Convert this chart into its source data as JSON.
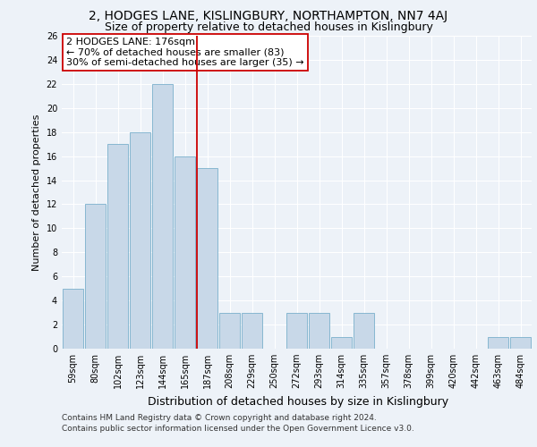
{
  "title1": "2, HODGES LANE, KISLINGBURY, NORTHAMPTON, NN7 4AJ",
  "title2": "Size of property relative to detached houses in Kislingbury",
  "xlabel": "Distribution of detached houses by size in Kislingbury",
  "ylabel": "Number of detached properties",
  "categories": [
    "59sqm",
    "80sqm",
    "102sqm",
    "123sqm",
    "144sqm",
    "165sqm",
    "187sqm",
    "208sqm",
    "229sqm",
    "250sqm",
    "272sqm",
    "293sqm",
    "314sqm",
    "335sqm",
    "357sqm",
    "378sqm",
    "399sqm",
    "420sqm",
    "442sqm",
    "463sqm",
    "484sqm"
  ],
  "values": [
    5,
    12,
    17,
    18,
    22,
    16,
    15,
    3,
    3,
    0,
    3,
    3,
    1,
    3,
    0,
    0,
    0,
    0,
    0,
    1,
    1
  ],
  "bar_color": "#c8d8e8",
  "bar_edgecolor": "#7ab0cc",
  "vline_x": 5.52,
  "vline_color": "#cc0000",
  "annotation_line1": "2 HODGES LANE: 176sqm",
  "annotation_line2": "← 70% of detached houses are smaller (83)",
  "annotation_line3": "30% of semi-detached houses are larger (35) →",
  "annotation_box_edgecolor": "#cc0000",
  "ylim": [
    0,
    26
  ],
  "yticks": [
    0,
    2,
    4,
    6,
    8,
    10,
    12,
    14,
    16,
    18,
    20,
    22,
    24,
    26
  ],
  "footer1": "Contains HM Land Registry data © Crown copyright and database right 2024.",
  "footer2": "Contains public sector information licensed under the Open Government Licence v3.0.",
  "background_color": "#edf2f8",
  "plot_background": "#edf2f8",
  "title1_fontsize": 10,
  "title2_fontsize": 9,
  "xlabel_fontsize": 9,
  "ylabel_fontsize": 8,
  "tick_fontsize": 7,
  "annotation_fontsize": 8,
  "footer_fontsize": 6.5
}
